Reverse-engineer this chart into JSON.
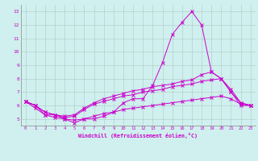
{
  "xlabel": "Windchill (Refroidissement éolien,°C)",
  "background_color": "#cff0ee",
  "grid_color": "#b0c8c8",
  "line_color": "#cc00cc",
  "x_ticks": [
    0,
    1,
    2,
    3,
    4,
    5,
    6,
    7,
    8,
    9,
    10,
    11,
    12,
    13,
    14,
    15,
    16,
    17,
    18,
    19,
    20,
    21,
    22,
    23
  ],
  "y_ticks": [
    5,
    6,
    7,
    8,
    9,
    10,
    11,
    12,
    13
  ],
  "ylim": [
    4.5,
    13.5
  ],
  "xlim": [
    -0.5,
    23.5
  ],
  "series": [
    {
      "x": [
        0,
        1,
        2,
        3,
        4,
        5,
        6,
        7,
        8,
        9,
        10,
        11,
        12,
        13,
        14,
        15,
        16,
        17,
        18,
        19,
        20,
        21,
        22,
        23
      ],
      "y": [
        6.3,
        6.0,
        5.3,
        5.3,
        5.0,
        4.7,
        5.0,
        5.0,
        5.2,
        5.5,
        6.2,
        6.5,
        6.5,
        7.5,
        9.2,
        11.3,
        12.2,
        13.0,
        12.0,
        8.5,
        8.0,
        7.0,
        6.0,
        6.0
      ]
    },
    {
      "x": [
        0,
        1,
        2,
        3,
        4,
        5,
        6,
        7,
        8,
        9,
        10,
        11,
        12,
        13,
        14,
        15,
        16,
        17,
        18,
        19,
        20,
        21,
        22,
        23
      ],
      "y": [
        6.3,
        6.0,
        5.5,
        5.3,
        5.2,
        5.3,
        5.8,
        6.2,
        6.5,
        6.7,
        6.9,
        7.1,
        7.2,
        7.4,
        7.5,
        7.6,
        7.8,
        7.9,
        8.3,
        8.5,
        8.0,
        7.2,
        6.2,
        6.0
      ]
    },
    {
      "x": [
        0,
        1,
        2,
        3,
        4,
        5,
        6,
        7,
        8,
        9,
        10,
        11,
        12,
        13,
        14,
        15,
        16,
        17,
        18,
        19,
        20,
        21,
        22,
        23
      ],
      "y": [
        6.3,
        6.0,
        5.5,
        5.3,
        5.1,
        5.2,
        5.7,
        6.1,
        6.3,
        6.5,
        6.7,
        6.8,
        7.0,
        7.1,
        7.2,
        7.4,
        7.5,
        7.6,
        7.8,
        7.9,
        8.0,
        7.0,
        6.2,
        6.0
      ]
    },
    {
      "x": [
        0,
        1,
        2,
        3,
        4,
        5,
        6,
        7,
        8,
        9,
        10,
        11,
        12,
        13,
        14,
        15,
        16,
        17,
        18,
        19,
        20,
        21,
        22,
        23
      ],
      "y": [
        6.3,
        5.8,
        5.3,
        5.1,
        5.0,
        4.9,
        5.0,
        5.2,
        5.4,
        5.5,
        5.7,
        5.8,
        5.9,
        6.0,
        6.1,
        6.2,
        6.3,
        6.4,
        6.5,
        6.6,
        6.7,
        6.5,
        6.1,
        6.0
      ]
    }
  ]
}
